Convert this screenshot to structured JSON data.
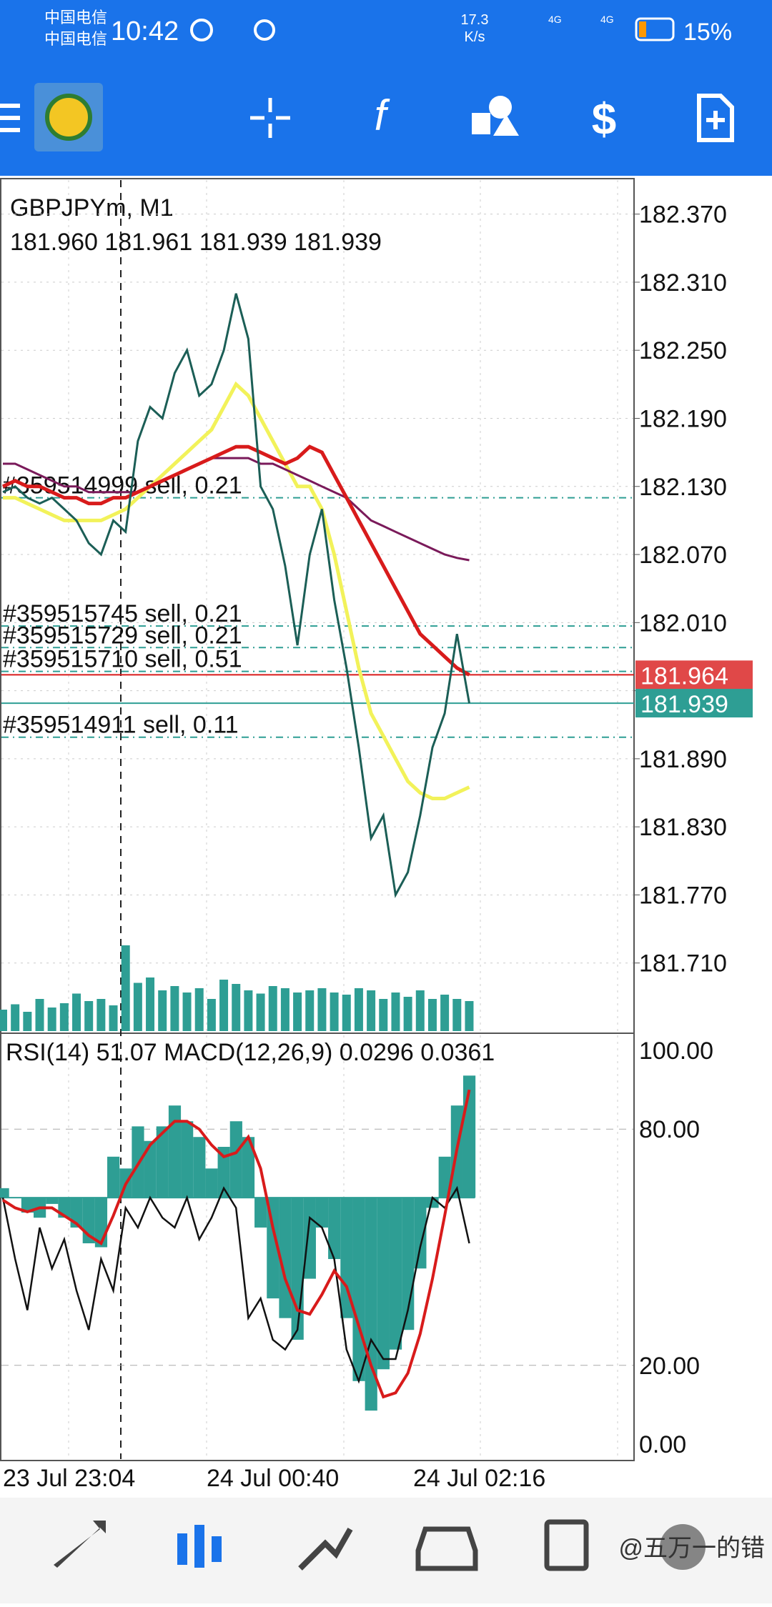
{
  "status_bar": {
    "carrier_1": "中国电信",
    "carrier_2": "中国电信",
    "time": "10:42",
    "speed_value": "17.3",
    "speed_unit": "K/s",
    "net_1": "4G",
    "net_2": "4G",
    "battery": "15%"
  },
  "chart": {
    "symbol": "GBPJPYm, M1",
    "ohlc": "181.960 181.961 181.939 181.939",
    "ylim": [
      181.65,
      182.4
    ],
    "yticks": [
      {
        "value": 182.37,
        "label": "182.370"
      },
      {
        "value": 182.31,
        "label": "182.310"
      },
      {
        "value": 182.25,
        "label": "182.250"
      },
      {
        "value": 182.19,
        "label": "182.190"
      },
      {
        "value": 182.13,
        "label": "182.130"
      },
      {
        "value": 182.07,
        "label": "182.070"
      },
      {
        "value": 182.01,
        "label": "182.010"
      },
      {
        "value": 181.95,
        "label": ""
      },
      {
        "value": 181.89,
        "label": "181.890"
      },
      {
        "value": 181.83,
        "label": "181.830"
      },
      {
        "value": 181.77,
        "label": "181.770"
      },
      {
        "value": 181.71,
        "label": "181.710"
      }
    ],
    "closes": [
      182.125,
      182.13,
      182.12,
      182.115,
      182.12,
      182.11,
      182.1,
      182.08,
      182.07,
      182.1,
      182.09,
      182.17,
      182.2,
      182.19,
      182.23,
      182.25,
      182.21,
      182.22,
      182.25,
      182.3,
      182.26,
      182.13,
      182.11,
      182.06,
      181.99,
      182.07,
      182.11,
      182.03,
      181.97,
      181.9,
      181.82,
      181.84,
      181.77,
      181.79,
      181.84,
      181.9,
      181.93,
      182.0,
      181.939
    ],
    "volumes": [
      20,
      25,
      18,
      30,
      22,
      26,
      35,
      28,
      30,
      24,
      80,
      45,
      50,
      38,
      42,
      36,
      40,
      30,
      48,
      44,
      38,
      35,
      42,
      40,
      36,
      38,
      40,
      36,
      34,
      40,
      38,
      30,
      36,
      32,
      38,
      30,
      34,
      30,
      28
    ],
    "moving_averages": [
      {
        "color": "#f2f25a",
        "values": [
          182.12,
          182.12,
          182.115,
          182.11,
          182.105,
          182.1,
          182.1,
          182.1,
          182.1,
          182.105,
          182.11,
          182.12,
          182.13,
          182.14,
          182.15,
          182.16,
          182.17,
          182.18,
          182.2,
          182.22,
          182.21,
          182.19,
          182.17,
          182.15,
          182.13,
          182.13,
          182.11,
          182.07,
          182.02,
          181.97,
          181.93,
          181.91,
          181.89,
          181.87,
          181.86,
          181.855,
          181.855,
          181.86,
          181.865
        ]
      },
      {
        "color": "#7a1a5a",
        "values": [
          182.15,
          182.15,
          182.145,
          182.14,
          182.135,
          182.13,
          182.13,
          182.125,
          182.125,
          182.125,
          182.125,
          182.125,
          182.13,
          182.135,
          182.14,
          182.145,
          182.15,
          182.155,
          182.155,
          182.155,
          182.155,
          182.15,
          182.15,
          182.145,
          182.14,
          182.135,
          182.13,
          182.125,
          182.12,
          182.11,
          182.1,
          182.095,
          182.09,
          182.085,
          182.08,
          182.075,
          182.07,
          182.067,
          182.065
        ]
      },
      {
        "color": "#d81b1b",
        "values": [
          182.13,
          182.135,
          182.13,
          182.13,
          182.125,
          182.12,
          182.12,
          182.115,
          182.115,
          182.12,
          182.12,
          182.125,
          182.13,
          182.135,
          182.14,
          182.145,
          182.15,
          182.155,
          182.16,
          182.165,
          182.165,
          182.16,
          182.155,
          182.15,
          182.155,
          182.165,
          182.16,
          182.14,
          182.12,
          182.1,
          182.08,
          182.06,
          182.04,
          182.02,
          182.0,
          181.99,
          181.98,
          181.97,
          181.964
        ]
      }
    ],
    "orders": [
      {
        "label": "#359514999 sell, 0.21",
        "price": 182.12
      },
      {
        "label": "#359515745 sell, 0.21",
        "price": 182.007
      },
      {
        "label": "#359515729 sell, 0.21",
        "price": 181.988
      },
      {
        "label": "#359515710 sell, 0.51",
        "price": 181.967
      },
      {
        "label": "#359514911 sell, 0.11",
        "price": 181.909
      }
    ],
    "ask": {
      "value": 181.964,
      "label": "181.964"
    },
    "bid": {
      "value": 181.939,
      "label": "181.939"
    }
  },
  "indicator": {
    "title": "RSI(14) 51.07 MACD(12,26,9) 0.0296 0.0361",
    "ylim": [
      -4,
      104
    ],
    "yticks": [
      {
        "value": 100,
        "label": "100.00"
      },
      {
        "value": 80,
        "label": "80.00"
      },
      {
        "value": 20,
        "label": "20.00"
      },
      {
        "value": 0,
        "label": "0.00"
      }
    ],
    "macd_zero_level": 62.6,
    "macd_histogram": [
      65,
      62.6,
      58.8,
      57.5,
      61,
      57.5,
      55,
      51,
      50,
      73,
      70,
      80.7,
      77,
      80.7,
      86,
      82,
      78,
      70,
      75.5,
      82,
      78,
      55,
      37,
      32,
      26.5,
      42,
      55,
      47,
      32,
      16,
      8.5,
      19,
      24,
      29,
      44.6,
      60,
      73,
      86,
      93.6
    ],
    "macd_signal": [
      62,
      60,
      59,
      60,
      60,
      58,
      56,
      53,
      51,
      58,
      66,
      71,
      76,
      79,
      82,
      82,
      80,
      76,
      73,
      74,
      78,
      70,
      55,
      42,
      34,
      33,
      38,
      44,
      40,
      30,
      20,
      12,
      13,
      18,
      28,
      42,
      58,
      75,
      90
    ],
    "rsi": [
      62.6,
      47,
      34,
      55,
      44.6,
      52,
      39,
      29,
      47,
      39,
      60,
      55,
      62.6,
      57.5,
      55,
      62.6,
      52,
      57.5,
      65,
      60,
      32,
      37,
      26.5,
      24,
      29,
      57.5,
      55,
      47,
      24,
      16,
      26.5,
      21.6,
      21.6,
      34,
      50,
      62.6,
      60,
      65,
      51
    ]
  },
  "time_axis": [
    "23 Jul 23:04",
    "24 Jul 00:40",
    "24 Jul 02:16"
  ],
  "watermark": "@五万一的错"
}
